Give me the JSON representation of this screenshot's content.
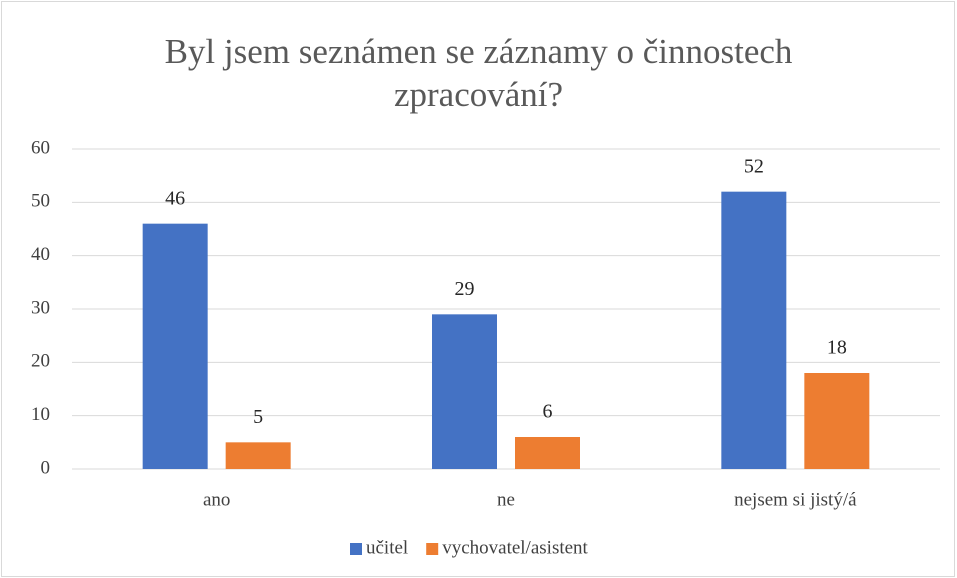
{
  "chart_data": {
    "type": "bar",
    "title": "Byl jsem seznámen se záznamy o činnostech zpracování?",
    "categories": [
      "ano",
      "ne",
      "nejsem si jistý/á"
    ],
    "series": [
      {
        "name": "učitel",
        "color": "#4472c4",
        "values": [
          46,
          29,
          52
        ]
      },
      {
        "name": "vychovatel/asistent",
        "color": "#ed7d31",
        "values": [
          5,
          6,
          18
        ]
      }
    ],
    "ylim": [
      0,
      60
    ],
    "yticks": [
      0,
      10,
      20,
      30,
      40,
      50,
      60
    ],
    "grid": true,
    "legend": "bottom"
  }
}
